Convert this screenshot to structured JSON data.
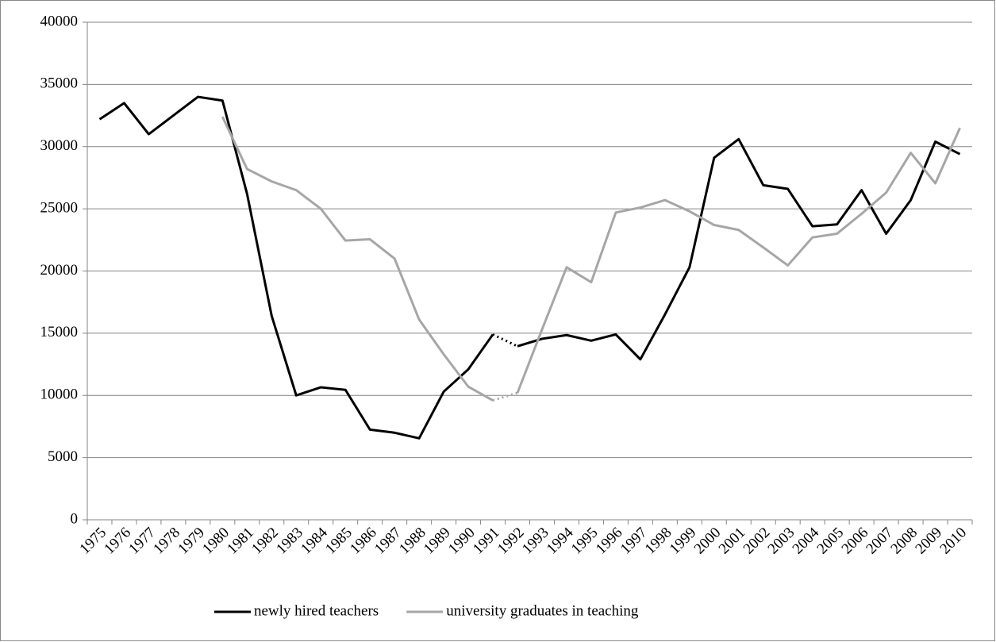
{
  "chart_data": {
    "type": "line",
    "categories": [
      "1975",
      "1976",
      "1977",
      "1978",
      "1979",
      "1980",
      "1981",
      "1982",
      "1983",
      "1984",
      "1985",
      "1986",
      "1987",
      "1988",
      "1989",
      "1990",
      "1991",
      "1992",
      "1993",
      "1994",
      "1995",
      "1996",
      "1997",
      "1998",
      "1999",
      "2000",
      "2001",
      "2002",
      "2003",
      "2004",
      "2005",
      "2006",
      "2007",
      "2008",
      "2009",
      "2010"
    ],
    "series": [
      {
        "name": "newly hired teachers",
        "color": "#000000",
        "values": [
          32200,
          33500,
          31000,
          32500,
          34000,
          33700,
          26200,
          16400,
          10000,
          10650,
          10450,
          7250,
          7000,
          6550,
          10300,
          12100,
          14900,
          13950,
          14550,
          14850,
          14400,
          14900,
          12900,
          16500,
          20300,
          29100,
          30600,
          26900,
          26600,
          23600,
          23750,
          26500,
          23000,
          25700,
          30400,
          29400
        ]
      },
      {
        "name": "university graduates in teaching",
        "color": "#a6a6a6",
        "values": [
          null,
          null,
          null,
          null,
          null,
          32400,
          28200,
          27200,
          26500,
          25000,
          22450,
          22550,
          21000,
          16100,
          13300,
          10700,
          9600,
          10200,
          15300,
          20300,
          19100,
          24700,
          25100,
          25700,
          24800,
          23700,
          23300,
          21900,
          20450,
          22700,
          23000,
          24600,
          26300,
          29500,
          27050,
          31500
        ]
      }
    ],
    "dotted_segment": [
      "1991",
      "1992"
    ],
    "ylim": [
      0,
      40000
    ],
    "yticks": [
      0,
      5000,
      10000,
      15000,
      20000,
      25000,
      30000,
      35000,
      40000
    ],
    "grid": true,
    "legend": "bottom"
  }
}
